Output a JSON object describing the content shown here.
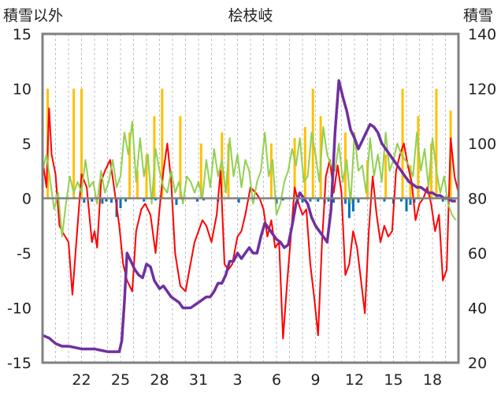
{
  "chart_data": {
    "type": "line",
    "title": "桧枝岐",
    "ylabel_left": "積雪以外",
    "ylabel_right": "積雪",
    "x_tick_labels": [
      "22",
      "25",
      "28",
      "31",
      "3",
      "6",
      "9",
      "12",
      "15",
      "18"
    ],
    "x_tick_days": [
      3,
      6,
      9,
      12,
      15,
      18,
      21,
      24,
      27,
      30
    ],
    "x_range": [
      0,
      32
    ],
    "ylim_left": [
      -15,
      15
    ],
    "y_ticks_left": [
      "-15",
      "-10",
      "-5",
      "0",
      "5",
      "10",
      "15"
    ],
    "ylim_right": [
      20,
      140
    ],
    "y_ticks_right": [
      "20",
      "40",
      "60",
      "80",
      "100",
      "120",
      "140"
    ],
    "grid": "vertical dashed",
    "colors": {
      "temperature": "#ff0000",
      "wind": "#92d050",
      "precipitation": "#ffc000",
      "negative_bars": "#0070c0",
      "snow_depth": "#7030a0",
      "frame": "#808080"
    },
    "series": [
      {
        "key": "temperature",
        "axis": "left",
        "x": [
          0,
          0.3,
          0.5,
          0.7,
          1.0,
          1.3,
          1.6,
          2.0,
          2.3,
          2.6,
          3.0,
          3.4,
          3.8,
          4.0,
          4.2,
          4.5,
          4.8,
          5.2,
          5.5,
          5.9,
          6.2,
          6.5,
          6.9,
          7.2,
          7.6,
          7.9,
          8.3,
          8.7,
          9.0,
          9.3,
          9.6,
          9.9,
          10.2,
          10.6,
          11.0,
          11.3,
          11.7,
          12.0,
          12.3,
          12.6,
          13.0,
          13.4,
          13.7,
          14.0,
          14.3,
          14.6,
          15.0,
          15.3,
          15.6,
          16.0,
          16.4,
          16.7,
          17.0,
          17.3,
          17.6,
          17.9,
          18.2,
          18.5,
          18.8,
          19.1,
          19.4,
          19.7,
          20.0,
          20.3,
          20.6,
          20.9,
          21.2,
          21.5,
          21.8,
          22.1,
          22.4,
          22.7,
          23.0,
          23.3,
          23.6,
          23.9,
          24.2,
          24.5,
          24.8,
          25.1,
          25.4,
          25.7,
          26.0,
          26.3,
          26.6,
          26.9,
          27.2,
          27.5,
          27.8,
          28.1,
          28.4,
          28.7,
          29.0,
          29.3,
          29.6,
          29.9,
          30.2,
          30.5,
          30.8,
          31.1,
          31.4,
          31.7,
          32.0
        ],
        "values": [
          3.5,
          1.0,
          8.2,
          4.0,
          2.2,
          -2.5,
          -3.2,
          -4.0,
          -8.8,
          -4.0,
          2.2,
          1.0,
          -4.0,
          -3.0,
          -4.5,
          1.5,
          2.5,
          3.5,
          1.0,
          -2.5,
          -6.0,
          -7.5,
          -8.5,
          -3.0,
          -1.0,
          -0.5,
          -1.5,
          -5.0,
          -1.0,
          2.5,
          5.0,
          1.5,
          -5.0,
          -8.0,
          -8.5,
          -6.5,
          -4.0,
          -3.0,
          -2.0,
          -2.5,
          -4.0,
          -1.5,
          2.5,
          -6.0,
          -6.5,
          -6.0,
          -3.5,
          -3.0,
          -1.5,
          1.0,
          0.5,
          0.0,
          -1.0,
          -3.5,
          -2.0,
          -4.5,
          -4.0,
          -12.8,
          -8.0,
          -3.5,
          1.0,
          -0.5,
          -1.5,
          -1.0,
          -6.0,
          -9.0,
          -12.5,
          -4.0,
          2.0,
          3.5,
          0.5,
          3.0,
          0.5,
          -7.0,
          -6.0,
          -3.0,
          -4.5,
          -7.5,
          -10.5,
          -3.0,
          2.0,
          -1.5,
          -4.0,
          -2.5,
          -3.5,
          -3.0,
          2.5,
          4.0,
          5.0,
          3.0,
          1.5,
          -2.0,
          -0.5,
          0.0,
          1.0,
          -0.5,
          -3.0,
          -1.5,
          -7.5,
          -6.5,
          5.5,
          2.0,
          0.5
        ]
      },
      {
        "key": "wind",
        "axis": "left",
        "x": [
          0,
          0.3,
          0.6,
          0.9,
          1.2,
          1.5,
          1.8,
          2.1,
          2.4,
          2.7,
          3.0,
          3.3,
          3.6,
          3.9,
          4.2,
          4.5,
          4.8,
          5.1,
          5.4,
          5.7,
          6.0,
          6.3,
          6.6,
          6.9,
          7.2,
          7.5,
          7.8,
          8.1,
          8.4,
          8.7,
          9.0,
          9.3,
          9.6,
          9.9,
          10.2,
          10.5,
          10.8,
          11.1,
          11.4,
          11.7,
          12.0,
          12.3,
          12.6,
          12.9,
          13.2,
          13.5,
          13.8,
          14.1,
          14.4,
          14.7,
          15.0,
          15.3,
          15.6,
          15.9,
          16.2,
          16.5,
          16.8,
          17.1,
          17.4,
          17.7,
          18.0,
          18.3,
          18.6,
          18.9,
          19.2,
          19.5,
          19.8,
          20.1,
          20.4,
          20.7,
          21.0,
          21.3,
          21.6,
          21.9,
          22.2,
          22.5,
          22.8,
          23.1,
          23.4,
          23.7,
          24.0,
          24.3,
          24.6,
          24.9,
          25.2,
          25.5,
          25.8,
          26.1,
          26.4,
          26.7,
          27.0,
          27.3,
          27.6,
          27.9,
          28.2,
          28.5,
          28.8,
          29.1,
          29.4,
          29.7,
          30.0,
          30.3,
          30.6,
          30.9,
          31.2,
          31.5,
          31.8
        ],
        "values": [
          2.5,
          4.0,
          1.5,
          -1.0,
          0.5,
          -3.5,
          -0.5,
          2.0,
          0.5,
          1.5,
          0.5,
          3.5,
          1.0,
          1.5,
          -0.5,
          2.5,
          0.5,
          1.5,
          3.5,
          1.0,
          2.0,
          6.0,
          4.0,
          7.0,
          1.5,
          5.5,
          2.0,
          4.0,
          -0.5,
          4.5,
          2.5,
          1.0,
          0.5,
          2.5,
          0.5,
          1.5,
          -0.5,
          2.0,
          1.5,
          0.5,
          1.5,
          0.0,
          3.5,
          1.0,
          4.5,
          2.0,
          3.5,
          0.5,
          5.5,
          2.0,
          4.0,
          1.0,
          3.5,
          2.5,
          -0.5,
          1.5,
          2.5,
          6.0,
          2.0,
          3.5,
          -1.5,
          -0.5,
          1.5,
          2.5,
          4.5,
          3.0,
          5.5,
          1.5,
          2.0,
          6.0,
          4.0,
          1.5,
          6.5,
          4.0,
          3.0,
          2.5,
          5.0,
          1.5,
          3.5,
          -0.5,
          6.0,
          2.5,
          3.0,
          0.5,
          5.5,
          2.0,
          4.0,
          1.5,
          6.0,
          2.5,
          3.5,
          5.0,
          4.0,
          3.5,
          3.0,
          2.0,
          6.0,
          2.5,
          4.5,
          1.0,
          5.5,
          2.5,
          0.5,
          2.0,
          -0.5,
          -1.5,
          -2.0
        ]
      },
      {
        "key": "snow_depth",
        "axis": "right",
        "x": [
          0,
          0.5,
          1.0,
          1.5,
          2.0,
          3.0,
          4.0,
          5.0,
          5.5,
          5.9,
          6.1,
          6.3,
          6.5,
          6.8,
          7.1,
          7.4,
          7.7,
          8.0,
          8.3,
          8.6,
          9.0,
          9.3,
          9.6,
          9.9,
          10.2,
          10.5,
          10.8,
          11.1,
          11.4,
          11.7,
          12.0,
          12.3,
          12.6,
          12.9,
          13.2,
          13.5,
          13.8,
          14.1,
          14.4,
          14.7,
          15.0,
          15.3,
          15.6,
          15.9,
          16.2,
          16.5,
          16.8,
          17.1,
          17.4,
          17.7,
          18.0,
          18.3,
          18.6,
          18.9,
          19.2,
          19.5,
          19.8,
          20.1,
          20.4,
          20.7,
          21.0,
          21.3,
          21.6,
          21.9,
          22.2,
          22.5,
          22.8,
          23.1,
          23.4,
          23.7,
          24.0,
          24.3,
          24.6,
          24.9,
          25.2,
          25.5,
          25.8,
          26.1,
          26.4,
          26.7,
          27.0,
          27.3,
          27.6,
          27.9,
          28.2,
          28.5,
          28.8,
          29.1,
          29.4,
          29.7,
          30.0,
          30.3,
          30.6,
          30.9,
          31.2,
          31.5,
          31.8
        ],
        "values": [
          30,
          29,
          27,
          26,
          26,
          25,
          25,
          24,
          24,
          24,
          28,
          42,
          60,
          57,
          54,
          52,
          51,
          56,
          55,
          50,
          47,
          48,
          46,
          44,
          43,
          42,
          40,
          40,
          40,
          41,
          42,
          43,
          44,
          44,
          46,
          49,
          49,
          52,
          57,
          57,
          60,
          58,
          60,
          62,
          60,
          60,
          66,
          71,
          69,
          67,
          65,
          64,
          62,
          63,
          70,
          78,
          82,
          80,
          78,
          73,
          70,
          68,
          66,
          64,
          76,
          104,
          123,
          117,
          112,
          105,
          102,
          98,
          101,
          104,
          107,
          106,
          104,
          100,
          98,
          96,
          94,
          92,
          90,
          88,
          86,
          85,
          84,
          84,
          83,
          82,
          82,
          81,
          81,
          80,
          80,
          79,
          79
        ]
      },
      {
        "key": "precipitation",
        "axis": "left",
        "bars": [
          {
            "x": 0.4,
            "value": 10
          },
          {
            "x": 2.4,
            "value": 10
          },
          {
            "x": 3.0,
            "value": 10
          },
          {
            "x": 6.7,
            "value": 6
          },
          {
            "x": 7.3,
            "value": 2.5
          },
          {
            "x": 8.0,
            "value": 4
          },
          {
            "x": 8.6,
            "value": 7.5
          },
          {
            "x": 9.2,
            "value": 10
          },
          {
            "x": 10.6,
            "value": 7.5
          },
          {
            "x": 12.2,
            "value": 5
          },
          {
            "x": 13.8,
            "value": 6
          },
          {
            "x": 14.3,
            "value": 5
          },
          {
            "x": 17.6,
            "value": 5
          },
          {
            "x": 19.4,
            "value": 5.5
          },
          {
            "x": 20.2,
            "value": 6.5
          },
          {
            "x": 20.8,
            "value": 10
          },
          {
            "x": 21.4,
            "value": 7.5
          },
          {
            "x": 23.3,
            "value": 6
          },
          {
            "x": 25.0,
            "value": 3.5
          },
          {
            "x": 26.4,
            "value": 4
          },
          {
            "x": 27.7,
            "value": 10
          },
          {
            "x": 28.3,
            "value": 3
          },
          {
            "x": 28.9,
            "value": 7.5
          },
          {
            "x": 29.9,
            "value": 5
          },
          {
            "x": 30.3,
            "value": 10
          },
          {
            "x": 31.4,
            "value": 8
          }
        ]
      },
      {
        "key": "negative_bars",
        "axis": "left",
        "bars": [
          {
            "x": 3.2,
            "value": -0.4
          },
          {
            "x": 3.8,
            "value": -0.3
          },
          {
            "x": 4.6,
            "value": -0.5
          },
          {
            "x": 4.9,
            "value": -0.3
          },
          {
            "x": 5.3,
            "value": -0.4
          },
          {
            "x": 5.7,
            "value": -1.7
          },
          {
            "x": 6.0,
            "value": -0.9
          },
          {
            "x": 6.4,
            "value": -0.3
          },
          {
            "x": 7.8,
            "value": -0.3
          },
          {
            "x": 8.7,
            "value": -0.2
          },
          {
            "x": 10.3,
            "value": -0.6
          },
          {
            "x": 11.9,
            "value": -0.3
          },
          {
            "x": 12.4,
            "value": -0.2
          },
          {
            "x": 13.5,
            "value": -0.3
          },
          {
            "x": 15.1,
            "value": -0.4
          },
          {
            "x": 16.2,
            "value": -0.3
          },
          {
            "x": 18.0,
            "value": -0.5
          },
          {
            "x": 18.5,
            "value": -0.2
          },
          {
            "x": 20.0,
            "value": -0.4
          },
          {
            "x": 20.6,
            "value": -0.3
          },
          {
            "x": 21.2,
            "value": -0.3
          },
          {
            "x": 21.7,
            "value": -0.5
          },
          {
            "x": 22.0,
            "value": -0.3
          },
          {
            "x": 22.4,
            "value": -0.4
          },
          {
            "x": 23.3,
            "value": -0.5
          },
          {
            "x": 23.6,
            "value": -1.8
          },
          {
            "x": 23.9,
            "value": -1.2
          },
          {
            "x": 24.3,
            "value": -0.4
          },
          {
            "x": 26.3,
            "value": -0.3
          },
          {
            "x": 27.0,
            "value": -0.5
          },
          {
            "x": 27.6,
            "value": -0.3
          },
          {
            "x": 28.0,
            "value": -1.2
          },
          {
            "x": 28.3,
            "value": -0.6
          },
          {
            "x": 28.6,
            "value": -0.4
          },
          {
            "x": 30.8,
            "value": -0.3
          }
        ]
      }
    ]
  }
}
